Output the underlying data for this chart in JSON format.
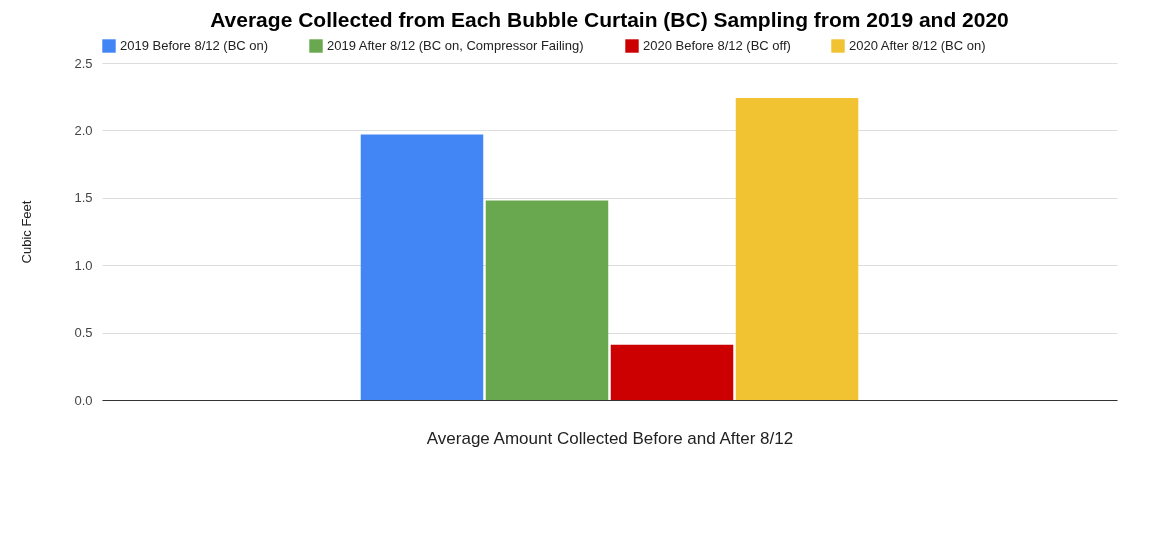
{
  "chart_data": {
    "type": "bar",
    "title": "Average Collected from Each Bubble Curtain (BC) Sampling from 2019 and 2020",
    "xlabel": "Average Amount Collected Before and After 8/12",
    "ylabel": "Cubic Feet",
    "categories": [
      null
    ],
    "series": [
      {
        "name": "2019 Before 8/12 (BC on)",
        "color": "#4285f4",
        "values": [
          1.97
        ]
      },
      {
        "name": "2019 After 8/12 (BC on, Compressor Failing)",
        "color": "#6aa84f",
        "values": [
          1.48
        ]
      },
      {
        "name": "2020 Before 8/12 (BC off)",
        "color": "#cc0000",
        "values": [
          0.41
        ]
      },
      {
        "name": "2020 After 8/12 (BC on)",
        "color": "#f1c232",
        "values": [
          2.24
        ]
      }
    ],
    "ylim": [
      0,
      2.5
    ],
    "yticks": [
      {
        "value": 0,
        "label": "0.0"
      },
      {
        "value": 0.5,
        "label": "0.5"
      },
      {
        "value": 1,
        "label": "1.0"
      },
      {
        "value": 1.5,
        "label": "1.5"
      },
      {
        "value": 2,
        "label": "2.0"
      },
      {
        "value": 2.5,
        "label": "2.5"
      }
    ],
    "grid": "y",
    "legend": "top",
    "tick_labels": "y"
  }
}
